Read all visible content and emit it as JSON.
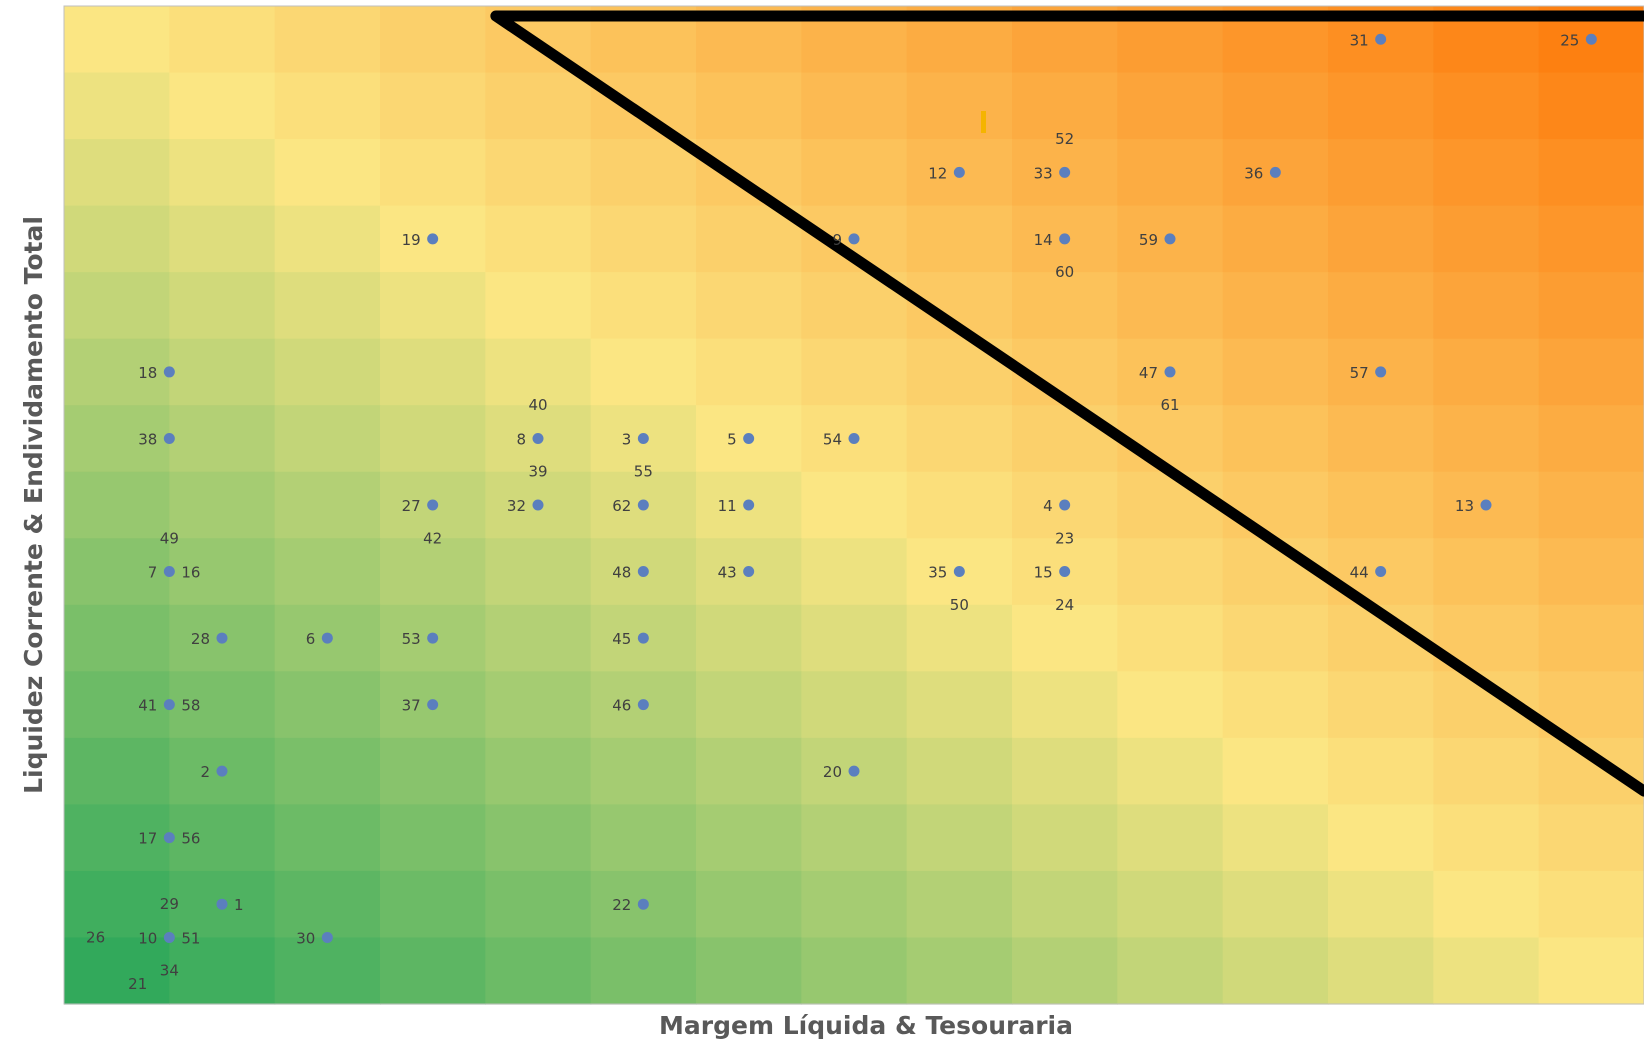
{
  "chart_data": {
    "type": "scatter",
    "title": "",
    "xlabel": "Margem Líquida & Tesouraria",
    "ylabel": "Liquidez Corrente & Endividamento Total",
    "grid_cols": 15,
    "grid_rows": 15,
    "xlim": [
      0,
      15
    ],
    "ylim": [
      0,
      15
    ],
    "grid": false,
    "legend": "none",
    "background": "heatmap gradient green (bottom-left) to yellow to orange (top-right)",
    "colors": {
      "green": "#2ea85a",
      "yellow": "#fbe683",
      "orange": "#fd7e0f",
      "point": "#5b7fbe",
      "divider": "#000000",
      "marker": "#f5b400"
    },
    "divider_line": {
      "from": [
        4.1,
        14.85
      ],
      "to": [
        15,
        3.2
      ]
    },
    "points": [
      {
        "label": "31",
        "x": 12.5,
        "y": 14.5,
        "label_side": "left"
      },
      {
        "label": "25",
        "x": 14.5,
        "y": 14.5,
        "label_side": "left"
      },
      {
        "label": "52",
        "x": 9.5,
        "y": 13.0,
        "label_side": "above"
      },
      {
        "label": "12",
        "x": 8.5,
        "y": 12.5,
        "label_side": "left"
      },
      {
        "label": "33",
        "x": 9.5,
        "y": 12.5,
        "label_side": "left"
      },
      {
        "label": "36",
        "x": 11.5,
        "y": 12.5,
        "label_side": "left"
      },
      {
        "label": "19",
        "x": 3.5,
        "y": 11.5,
        "label_side": "left"
      },
      {
        "label": "9",
        "x": 7.5,
        "y": 11.5,
        "label_side": "left"
      },
      {
        "label": "14",
        "x": 9.5,
        "y": 11.5,
        "label_side": "left"
      },
      {
        "label": "59",
        "x": 10.5,
        "y": 11.5,
        "label_side": "left"
      },
      {
        "label": "60",
        "x": 9.5,
        "y": 11.0,
        "label_side": "below"
      },
      {
        "label": "18",
        "x": 1.0,
        "y": 9.5,
        "label_side": "left"
      },
      {
        "label": "47",
        "x": 10.5,
        "y": 9.5,
        "label_side": "left"
      },
      {
        "label": "57",
        "x": 12.5,
        "y": 9.5,
        "label_side": "left"
      },
      {
        "label": "61",
        "x": 10.5,
        "y": 9.0,
        "label_side": "below"
      },
      {
        "label": "40",
        "x": 4.5,
        "y": 9.0,
        "label_side": "above"
      },
      {
        "label": "38",
        "x": 1.0,
        "y": 8.5,
        "label_side": "left"
      },
      {
        "label": "8",
        "x": 4.5,
        "y": 8.5,
        "label_side": "left"
      },
      {
        "label": "3",
        "x": 5.5,
        "y": 8.5,
        "label_side": "left"
      },
      {
        "label": "5",
        "x": 6.5,
        "y": 8.5,
        "label_side": "left"
      },
      {
        "label": "54",
        "x": 7.5,
        "y": 8.5,
        "label_side": "left"
      },
      {
        "label": "39",
        "x": 4.5,
        "y": 8.0,
        "label_side": "below"
      },
      {
        "label": "55",
        "x": 5.5,
        "y": 8.0,
        "label_side": "below"
      },
      {
        "label": "27",
        "x": 3.5,
        "y": 7.5,
        "label_side": "left"
      },
      {
        "label": "32",
        "x": 4.5,
        "y": 7.5,
        "label_side": "left"
      },
      {
        "label": "62",
        "x": 5.5,
        "y": 7.5,
        "label_side": "left"
      },
      {
        "label": "11",
        "x": 6.5,
        "y": 7.5,
        "label_side": "left"
      },
      {
        "label": "4",
        "x": 9.5,
        "y": 7.5,
        "label_side": "left"
      },
      {
        "label": "13",
        "x": 13.5,
        "y": 7.5,
        "label_side": "left"
      },
      {
        "label": "42",
        "x": 3.5,
        "y": 7.0,
        "label_side": "below"
      },
      {
        "label": "23",
        "x": 9.5,
        "y": 7.0,
        "label_side": "below"
      },
      {
        "label": "49",
        "x": 1.0,
        "y": 7.0,
        "label_side": "above"
      },
      {
        "label": "7",
        "x": 1.0,
        "y": 6.5,
        "label_side": "left"
      },
      {
        "label": "16",
        "x": 1.0,
        "y": 6.5,
        "label_side": "right"
      },
      {
        "label": "48",
        "x": 5.5,
        "y": 6.5,
        "label_side": "left"
      },
      {
        "label": "43",
        "x": 6.5,
        "y": 6.5,
        "label_side": "left"
      },
      {
        "label": "35",
        "x": 8.5,
        "y": 6.5,
        "label_side": "left"
      },
      {
        "label": "15",
        "x": 9.5,
        "y": 6.5,
        "label_side": "left"
      },
      {
        "label": "44",
        "x": 12.5,
        "y": 6.5,
        "label_side": "left"
      },
      {
        "label": "50",
        "x": 8.5,
        "y": 6.0,
        "label_side": "below"
      },
      {
        "label": "24",
        "x": 9.5,
        "y": 6.0,
        "label_side": "below"
      },
      {
        "label": "28",
        "x": 1.5,
        "y": 5.5,
        "label_side": "left"
      },
      {
        "label": "6",
        "x": 2.5,
        "y": 5.5,
        "label_side": "left"
      },
      {
        "label": "53",
        "x": 3.5,
        "y": 5.5,
        "label_side": "left"
      },
      {
        "label": "45",
        "x": 5.5,
        "y": 5.5,
        "label_side": "left"
      },
      {
        "label": "41",
        "x": 1.0,
        "y": 4.5,
        "label_side": "left"
      },
      {
        "label": "58",
        "x": 1.0,
        "y": 4.5,
        "label_side": "right"
      },
      {
        "label": "37",
        "x": 3.5,
        "y": 4.5,
        "label_side": "left"
      },
      {
        "label": "46",
        "x": 5.5,
        "y": 4.5,
        "label_side": "left"
      },
      {
        "label": "2",
        "x": 1.5,
        "y": 3.5,
        "label_side": "left"
      },
      {
        "label": "20",
        "x": 7.5,
        "y": 3.5,
        "label_side": "left"
      },
      {
        "label": "17",
        "x": 1.0,
        "y": 2.5,
        "label_side": "left"
      },
      {
        "label": "56",
        "x": 1.0,
        "y": 2.5,
        "label_side": "right"
      },
      {
        "label": "1",
        "x": 1.5,
        "y": 1.5,
        "label_side": "right"
      },
      {
        "label": "22",
        "x": 5.5,
        "y": 1.5,
        "label_side": "left"
      },
      {
        "label": "29",
        "x": 1.0,
        "y": 1.5,
        "label_side": "below"
      },
      {
        "label": "10",
        "x": 1.0,
        "y": 1.0,
        "label_side": "left"
      },
      {
        "label": "51",
        "x": 1.0,
        "y": 1.0,
        "label_side": "right"
      },
      {
        "label": "30",
        "x": 2.5,
        "y": 1.0,
        "label_side": "left"
      },
      {
        "label": "34",
        "x": 1.0,
        "y": 0.5,
        "label_side": "above"
      },
      {
        "label": "26",
        "x": 0.3,
        "y": 1.0,
        "label_side": "center"
      },
      {
        "label": "21",
        "x": 0.7,
        "y": 0.3,
        "label_side": "center"
      }
    ]
  }
}
